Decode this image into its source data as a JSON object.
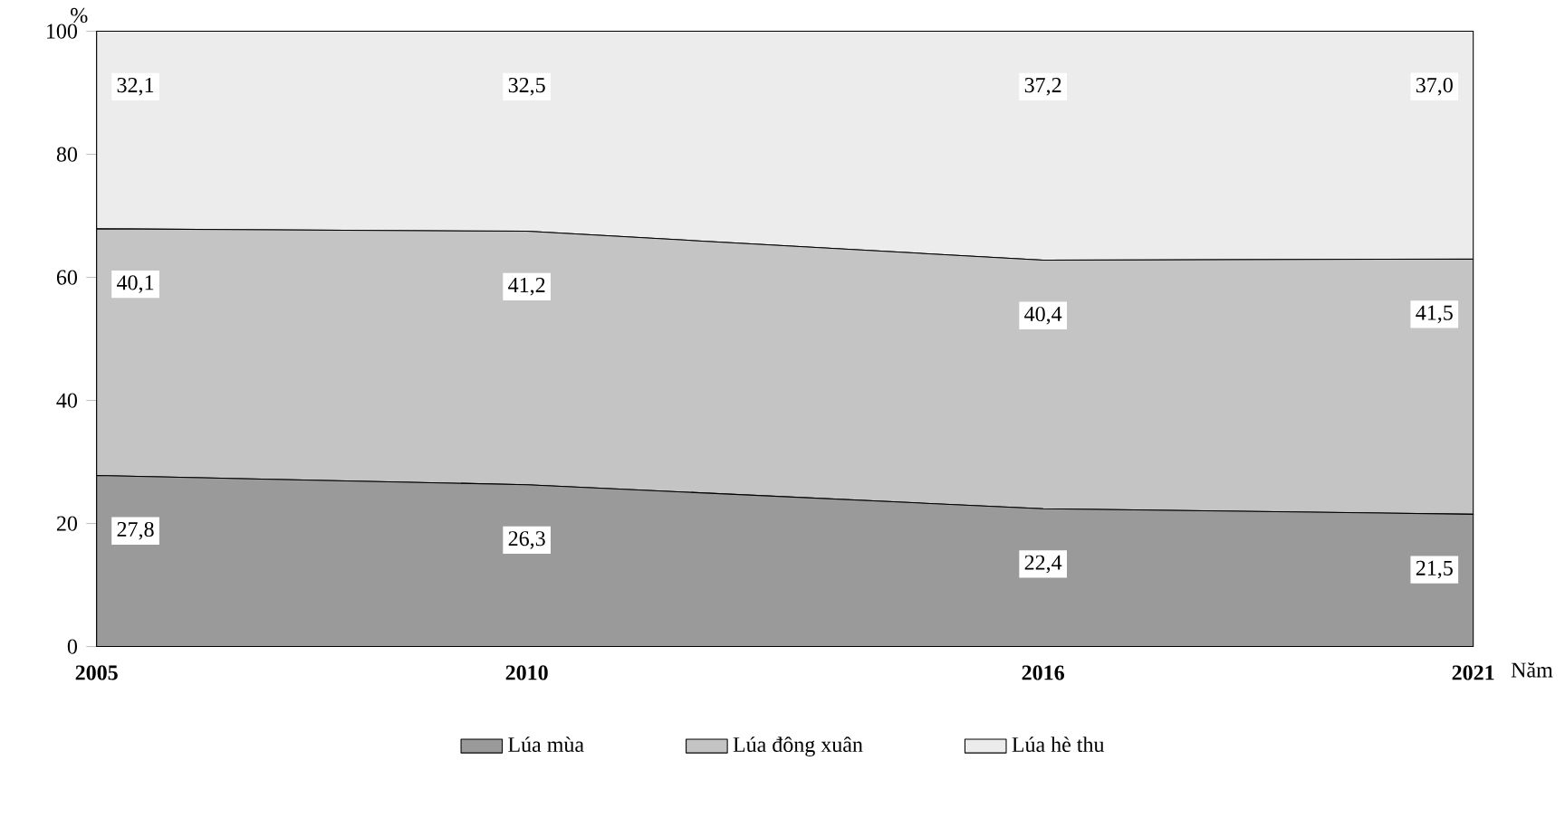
{
  "chart_data": {
    "type": "area",
    "stacked": true,
    "ylabel": "%",
    "xlabel": "Năm",
    "x": [
      2005,
      2010,
      2016,
      2021
    ],
    "xlim": [
      2005,
      2021
    ],
    "xticks": [
      2005,
      2010,
      2016,
      2021
    ],
    "ylim": [
      0,
      100
    ],
    "yticks": [
      0,
      20,
      40,
      60,
      80,
      100
    ],
    "legend": "bottom",
    "grid": false,
    "series": [
      {
        "name": "Lúa mùa",
        "color": "#9a9a9a",
        "values": [
          27.8,
          26.3,
          22.4,
          21.5
        ],
        "value_labels": [
          "27,8",
          "26,3",
          "22,4",
          "21,5"
        ]
      },
      {
        "name": "Lúa đông xuân",
        "color": "#c4c4c4",
        "values": [
          40.1,
          41.2,
          40.4,
          41.5
        ],
        "value_labels": [
          "40,1",
          "41,2",
          "40,4",
          "41,5"
        ]
      },
      {
        "name": "Lúa hè thu",
        "color": "#ececec",
        "values": [
          32.1,
          32.5,
          37.2,
          37.0
        ],
        "value_labels": [
          "32,1",
          "32,5",
          "37,2",
          "37,0"
        ]
      }
    ]
  }
}
